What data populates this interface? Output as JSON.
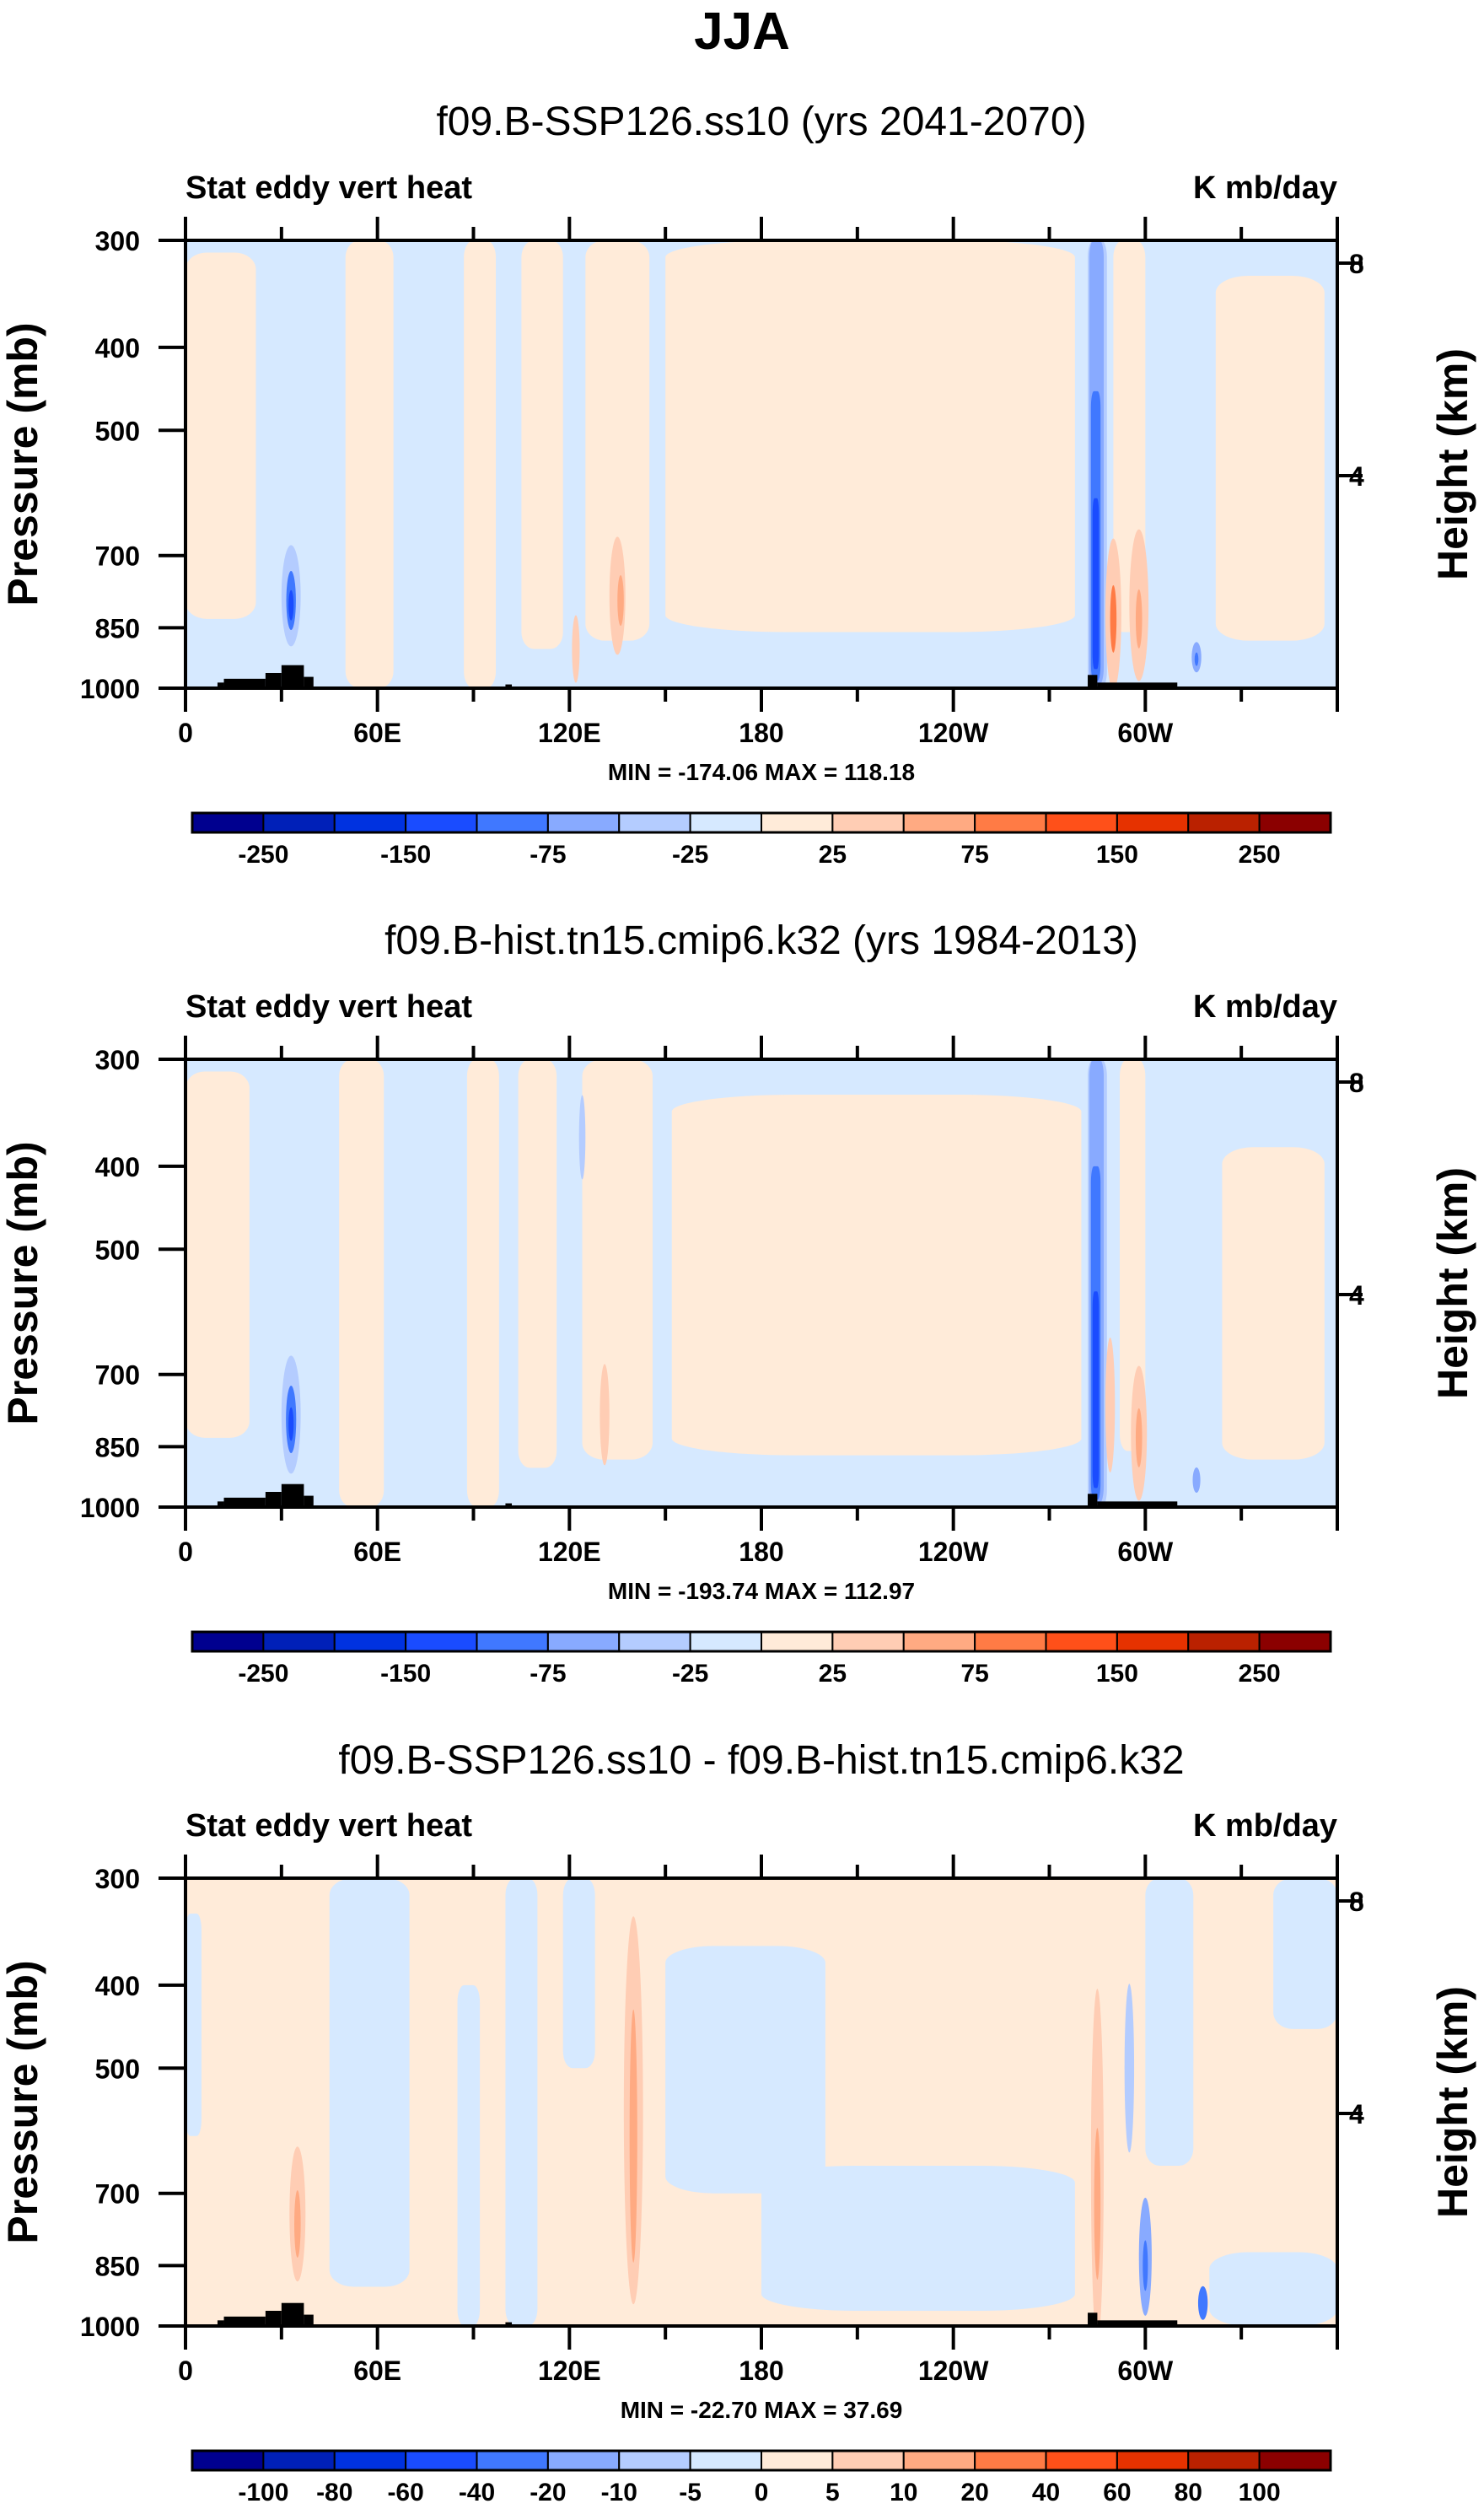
{
  "figure_title": "JJA",
  "chart_data": [
    {
      "type": "heatmap",
      "title": "f09.B-SSP126.ss10 (yrs 2041-2070)",
      "left_label": "Stat eddy vert heat",
      "right_label": "K mb/day",
      "ylabel": "Pressure (mb)",
      "ylabel_right": "Height (km)",
      "x_ticks": [
        "0",
        "60E",
        "120E",
        "180",
        "120W",
        "60W"
      ],
      "y_ticks": [
        "300",
        "400",
        "500",
        "700",
        "850",
        "1000"
      ],
      "y_right_ticks": [
        "8",
        "4"
      ],
      "xlim": [
        0,
        360
      ],
      "ylim": [
        1000,
        300
      ],
      "stats": "MIN = -174.06   MAX = 118.18",
      "min": -174.06,
      "max": 118.18,
      "colorbar_labels": [
        "-250",
        "-150",
        "-75",
        "-25",
        "25",
        "75",
        "150",
        "250"
      ],
      "colorbar_levels": [
        -250,
        -200,
        -150,
        -100,
        -75,
        -50,
        -25,
        0,
        25,
        50,
        75,
        100,
        150,
        200,
        250
      ]
    },
    {
      "type": "heatmap",
      "title": "f09.B-hist.tn15.cmip6.k32 (yrs 1984-2013)",
      "left_label": "Stat eddy vert heat",
      "right_label": "K mb/day",
      "ylabel": "Pressure (mb)",
      "ylabel_right": "Height (km)",
      "x_ticks": [
        "0",
        "60E",
        "120E",
        "180",
        "120W",
        "60W"
      ],
      "y_ticks": [
        "300",
        "400",
        "500",
        "700",
        "850",
        "1000"
      ],
      "y_right_ticks": [
        "8",
        "4"
      ],
      "xlim": [
        0,
        360
      ],
      "ylim": [
        1000,
        300
      ],
      "stats": "MIN = -193.74   MAX = 112.97",
      "min": -193.74,
      "max": 112.97,
      "colorbar_labels": [
        "-250",
        "-150",
        "-75",
        "-25",
        "25",
        "75",
        "150",
        "250"
      ],
      "colorbar_levels": [
        -250,
        -200,
        -150,
        -100,
        -75,
        -50,
        -25,
        0,
        25,
        50,
        75,
        100,
        150,
        200,
        250
      ]
    },
    {
      "type": "heatmap",
      "title": "f09.B-SSP126.ss10 - f09.B-hist.tn15.cmip6.k32",
      "left_label": "Stat eddy vert heat",
      "right_label": "K mb/day",
      "ylabel": "Pressure (mb)",
      "ylabel_right": "Height (km)",
      "x_ticks": [
        "0",
        "60E",
        "120E",
        "180",
        "120W",
        "60W"
      ],
      "y_ticks": [
        "300",
        "400",
        "500",
        "700",
        "850",
        "1000"
      ],
      "y_right_ticks": [
        "8",
        "4"
      ],
      "xlim": [
        0,
        360
      ],
      "ylim": [
        1000,
        300
      ],
      "stats": "MIN = -22.70   MAX =  37.69",
      "min": -22.7,
      "max": 37.69,
      "colorbar_labels": [
        "-100",
        "-80",
        "-60",
        "-40",
        "-20",
        "-10",
        "-5",
        "0",
        "5",
        "10",
        "20",
        "40",
        "60",
        "80",
        "100"
      ],
      "colorbar_levels": [
        -100,
        -80,
        -60,
        -40,
        -20,
        -10,
        -5,
        0,
        5,
        10,
        20,
        40,
        60,
        80,
        100
      ]
    }
  ],
  "colors": [
    "#00008F",
    "#0020B8",
    "#0032E0",
    "#1A4CFF",
    "#4078FF",
    "#88AAFF",
    "#B4CCFF",
    "#D6E9FF",
    "#FFEBD9",
    "#FFCDB4",
    "#FFAA82",
    "#FF7B45",
    "#FF5019",
    "#E63200",
    "#BA2100",
    "#8B0000"
  ],
  "land_color": "#000000"
}
